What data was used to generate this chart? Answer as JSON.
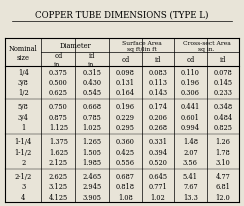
{
  "title": "COPPER TUBE DIMENSIONS (TYPE L)",
  "rows": [
    [
      "1/4",
      "0.375",
      "0.315",
      "0.098",
      "0.083",
      "0.110",
      "0.078"
    ],
    [
      "3/8",
      "0.500",
      "0.430",
      "0.131",
      "0.113",
      "0.196",
      "0.145"
    ],
    [
      "1/2",
      "0.625",
      "0.545",
      "0.164",
      "0.143",
      "0.306",
      "0.233"
    ],
    [
      "5/8",
      "0.750",
      "0.668",
      "0.196",
      "0.174",
      "0.441",
      "0.348"
    ],
    [
      "3/4",
      "0.875",
      "0.785",
      "0.229",
      "0.206",
      "0.601",
      "0.484"
    ],
    [
      "1",
      "1.125",
      "1.025",
      "0.295",
      "0.268",
      "0.994",
      "0.825"
    ],
    [
      "1-1/4",
      "1.375",
      "1.265",
      "0.360",
      "0.331",
      "1.48",
      "1.26"
    ],
    [
      "1-1/2",
      "1.625",
      "1.505",
      "0.425",
      "0.394",
      "2.07",
      "1.78"
    ],
    [
      "2",
      "2.125",
      "1.985",
      "0.556",
      "0.520",
      "3.56",
      "3.10"
    ],
    [
      "2-1/2",
      "2.625",
      "2.465",
      "0.687",
      "0.645",
      "5.41",
      "4.77"
    ],
    [
      "3",
      "3.125",
      "2.945",
      "0.818",
      "0.771",
      "7.67",
      "6.81"
    ],
    [
      "4",
      "4.125",
      "3.905",
      "1.08",
      "1.02",
      "13.3",
      "12.0"
    ]
  ],
  "group_breaks": [
    3,
    6,
    9
  ],
  "bg_color": "#e8e4d8",
  "title_fontsize": 6.2,
  "header_fontsize": 4.8,
  "cell_fontsize": 4.8
}
